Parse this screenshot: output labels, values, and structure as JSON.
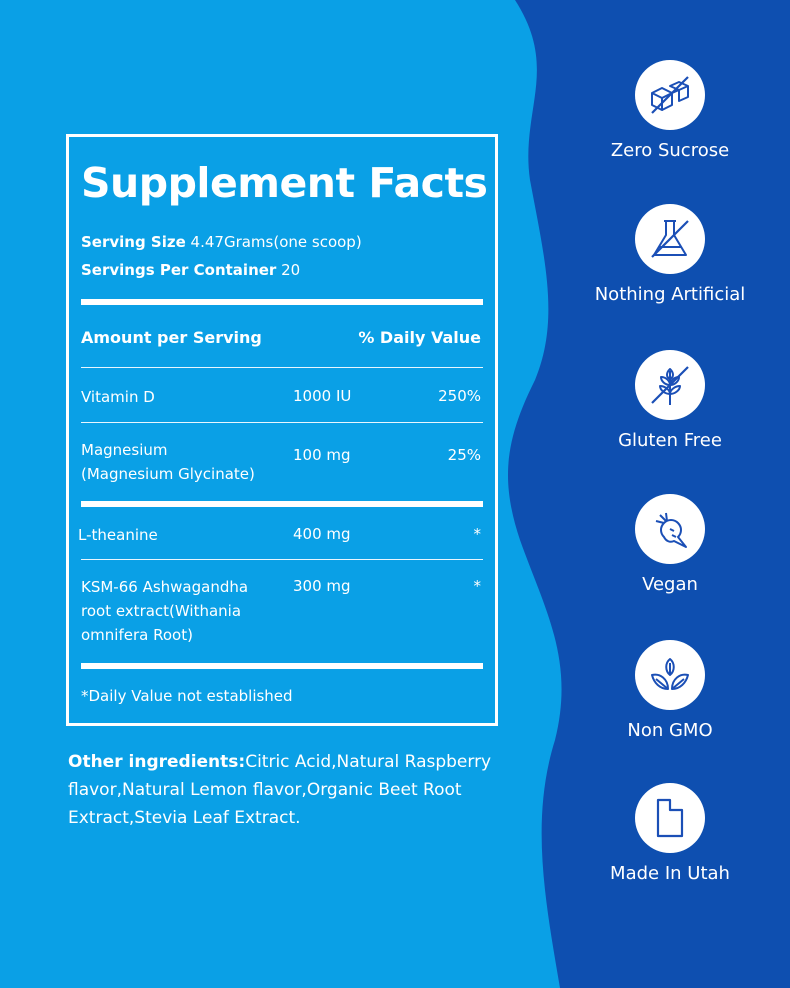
{
  "colors": {
    "left_background": "#0aa0e6",
    "right_background": "#0e4fb0",
    "icon_stroke": "#1b4fb6"
  },
  "panel": {
    "title": "Supplement Facts",
    "serving_size_label": "Serving Size",
    "serving_size_value": " 4.47Grams(one scoop)",
    "servings_label": "Servings Per Container",
    "servings_value": " 20",
    "amount_header": "Amount per Serving",
    "daily_value_header": "% Daily Value",
    "rows": [
      {
        "name": "Vitamin D",
        "amount": "1000 IU",
        "dv": "250%"
      },
      {
        "name": "Magnesium\n(Magnesium Glycinate)",
        "amount": "100 mg",
        "dv": "25%"
      },
      {
        "name": "L-theanine",
        "amount": "400 mg",
        "dv": "*"
      },
      {
        "name": "KSM-66 Ashwagandha\nroot extract(Withania\nomnifera Root)",
        "amount": "300 mg",
        "dv": "*"
      }
    ],
    "footnote": "*Daily Value not established"
  },
  "other_ingredients": {
    "label": "Other ingredients:",
    "text": "Citric Acid,Natural Raspberry flavor,Natural Lemon flavor,Organic Beet Root Extract,Stevia Leaf Extract."
  },
  "badges": [
    {
      "label": "Zero Sucrose",
      "icon": "sugar-cubes-icon"
    },
    {
      "label": "Nothing Artificial",
      "icon": "flask-icon"
    },
    {
      "label": "Gluten Free",
      "icon": "wheat-icon"
    },
    {
      "label": "Vegan",
      "icon": "carrot-icon"
    },
    {
      "label": "Non GMO",
      "icon": "leaves-icon"
    },
    {
      "label": "Made In Utah",
      "icon": "utah-state-icon"
    }
  ]
}
